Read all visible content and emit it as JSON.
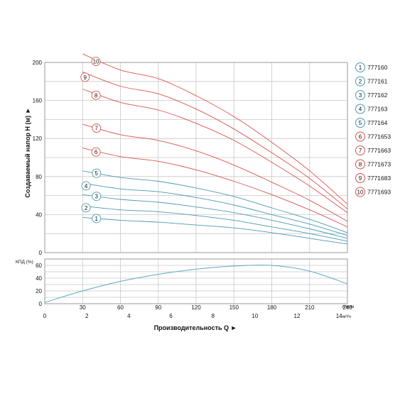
{
  "colors": {
    "blue": "#4a9ab0",
    "red": "#d9534f",
    "efficiency": "#5ba8c8",
    "grid": "#c8c8c8"
  },
  "chart_data": [
    {
      "type": "line",
      "ylabel": "Создаваемый напор Н (м) ►",
      "ylim": [
        0,
        200
      ],
      "yticks": [
        0,
        40,
        80,
        120,
        160,
        200
      ],
      "xlim": [
        0,
        240
      ],
      "grid": true,
      "legend": "right",
      "series": [
        {
          "name": "777160",
          "marker": "1",
          "color": "blue",
          "x": [
            30,
            60,
            90,
            120,
            150,
            180,
            210,
            240
          ],
          "y": [
            37,
            34,
            32,
            29,
            26,
            21,
            15,
            9
          ]
        },
        {
          "name": "777161",
          "marker": "2",
          "color": "blue",
          "x": [
            30,
            60,
            90,
            120,
            150,
            180,
            210,
            240
          ],
          "y": [
            49,
            45,
            43,
            39,
            34,
            27,
            20,
            12
          ]
        },
        {
          "name": "777162",
          "marker": "3",
          "color": "blue",
          "x": [
            30,
            60,
            90,
            120,
            150,
            180,
            210,
            240
          ],
          "y": [
            61,
            56,
            53,
            48,
            42,
            34,
            25,
            15
          ]
        },
        {
          "name": "777163",
          "marker": "4",
          "color": "blue",
          "x": [
            30,
            60,
            90,
            120,
            150,
            180,
            210,
            240
          ],
          "y": [
            73,
            67,
            64,
            58,
            50,
            40,
            30,
            18
          ]
        },
        {
          "name": "777164",
          "marker": "5",
          "color": "blue",
          "x": [
            30,
            60,
            90,
            120,
            150,
            180,
            210,
            240
          ],
          "y": [
            86,
            79,
            75,
            68,
            59,
            47,
            35,
            21
          ]
        },
        {
          "name": "7771653",
          "marker": "6",
          "color": "red",
          "x": [
            30,
            60,
            90,
            120,
            150,
            180,
            210,
            240
          ],
          "y": [
            110,
            101,
            96,
            87,
            75,
            61,
            45,
            27
          ]
        },
        {
          "name": "7771663",
          "marker": "7",
          "color": "red",
          "x": [
            30,
            60,
            90,
            120,
            150,
            180,
            210,
            240
          ],
          "y": [
            135,
            124,
            118,
            107,
            92,
            74,
            55,
            33
          ]
        },
        {
          "name": "7771673",
          "marker": "8",
          "color": "red",
          "x": [
            30,
            60,
            90,
            120,
            150,
            180,
            210,
            240
          ],
          "y": [
            172,
            158,
            150,
            136,
            118,
            95,
            70,
            42
          ]
        },
        {
          "name": "7771683",
          "marker": "9",
          "color": "red",
          "x": [
            30,
            60,
            90,
            120,
            150,
            180,
            210,
            240
          ],
          "y": [
            190,
            175,
            167,
            151,
            130,
            105,
            78,
            46
          ]
        },
        {
          "name": "7771693",
          "marker": "10",
          "color": "red",
          "x": [
            30,
            60,
            90,
            120,
            150,
            180,
            210,
            240
          ],
          "y": [
            209,
            192,
            183,
            165,
            143,
            116,
            86,
            51
          ]
        }
      ]
    },
    {
      "type": "line",
      "ylabel": "КПД (%)",
      "ylim": [
        0,
        70
      ],
      "yticks": [
        0,
        20,
        40,
        60
      ],
      "xlim": [
        0,
        240
      ],
      "grid": true,
      "series": [
        {
          "x": [
            0,
            30,
            60,
            90,
            120,
            150,
            180,
            210,
            240
          ],
          "y": [
            2,
            20,
            35,
            46,
            54,
            59,
            60,
            51,
            31
          ],
          "color": "efficiency"
        }
      ]
    }
  ],
  "x_axis": {
    "top_ticks": [
      "30",
      "60",
      "90",
      "120",
      "150",
      "180",
      "210",
      "240"
    ],
    "top_unit": "л/мин",
    "bottom_ticks": [
      "0",
      "2",
      "4",
      "6",
      "8",
      "10",
      "12",
      "14"
    ],
    "bottom_unit": "м³/ч",
    "label": "Производительность Q ►"
  }
}
